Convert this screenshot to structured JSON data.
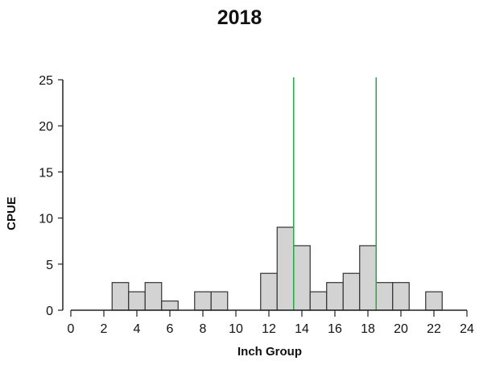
{
  "chart_data": {
    "type": "bar",
    "title": "2018",
    "xlabel": "Inch Group",
    "ylabel": "CPUE",
    "xlim": [
      0,
      24
    ],
    "ylim": [
      0,
      25
    ],
    "x_ticks": [
      0,
      2,
      4,
      6,
      8,
      10,
      12,
      14,
      16,
      18,
      20,
      22,
      24
    ],
    "y_ticks": [
      0,
      5,
      10,
      15,
      20,
      25
    ],
    "bin_width": 1,
    "bars": [
      {
        "x": 3,
        "value": 3
      },
      {
        "x": 4,
        "value": 2
      },
      {
        "x": 5,
        "value": 3
      },
      {
        "x": 6,
        "value": 1
      },
      {
        "x": 8,
        "value": 2
      },
      {
        "x": 9,
        "value": 2
      },
      {
        "x": 12,
        "value": 4
      },
      {
        "x": 13,
        "value": 9
      },
      {
        "x": 14,
        "value": 7
      },
      {
        "x": 15,
        "value": 2
      },
      {
        "x": 16,
        "value": 3
      },
      {
        "x": 17,
        "value": 4
      },
      {
        "x": 18,
        "value": 7
      },
      {
        "x": 19,
        "value": 3
      },
      {
        "x": 20,
        "value": 3
      },
      {
        "x": 22,
        "value": 2
      }
    ],
    "reference_lines_x": [
      13.5,
      18.5
    ],
    "bar_color": "#d3d3d3",
    "bar_edge_color": "#333333",
    "reference_line_color": "#22aa44",
    "grid": false,
    "legend": "none"
  }
}
